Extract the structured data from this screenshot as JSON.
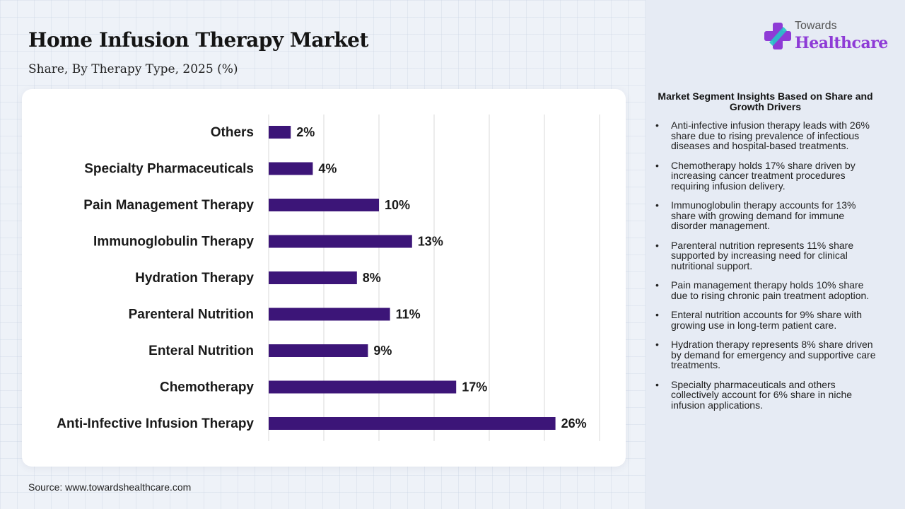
{
  "header": {
    "title": "Home Infusion Therapy Market",
    "subtitle": "Share, By Therapy Type, 2025 (%)"
  },
  "source": "Source: www.towardshealthcare.com",
  "logo": {
    "line1": "Towards",
    "line2": "Healthcare",
    "icon": "plus-cross-icon"
  },
  "insights": {
    "title": "Market Segment Insights Based on Share and Growth Drivers",
    "items": [
      "Anti-infective infusion therapy leads with 26% share due to rising prevalence of infectious diseases and hospital-based treatments.",
      "Chemotherapy holds 17% share driven by increasing cancer treatment procedures requiring infusion delivery.",
      "Immunoglobulin therapy accounts for 13% share with growing demand for immune disorder management.",
      "Parenteral nutrition represents 11% share supported by increasing need for clinical nutritional support.",
      "Pain management therapy holds 10% share due to rising chronic pain treatment adoption.",
      "Enteral nutrition accounts for 9% share with growing use in long-term patient care.",
      "Hydration therapy represents 8% share driven by demand for emergency and supportive care treatments.",
      "Specialty pharmaceuticals and others collectively account for 6% share in niche infusion applications."
    ]
  },
  "colors": {
    "bar": "#3c1578",
    "gridline": "#d9d9d9",
    "brand": "#8e3bd6",
    "brand_accent": "#27c4c8"
  },
  "chart_data": {
    "type": "bar",
    "orientation": "horizontal",
    "categories": [
      "Others",
      "Specialty Pharmaceuticals",
      "Pain Management Therapy",
      "Immunoglobulin Therapy",
      "Hydration Therapy",
      "Parenteral Nutrition",
      "Enteral Nutrition",
      "Chemotherapy",
      "Anti-Infective Infusion Therapy"
    ],
    "values": [
      2,
      4,
      10,
      13,
      8,
      11,
      9,
      17,
      26
    ],
    "labels": [
      "2%",
      "4%",
      "10%",
      "13%",
      "8%",
      "11%",
      "9%",
      "17%",
      "26%"
    ],
    "unit": "%",
    "xlim": [
      0,
      30
    ],
    "grid": true,
    "legend": "none",
    "title": "",
    "xlabel": "",
    "ylabel": ""
  }
}
